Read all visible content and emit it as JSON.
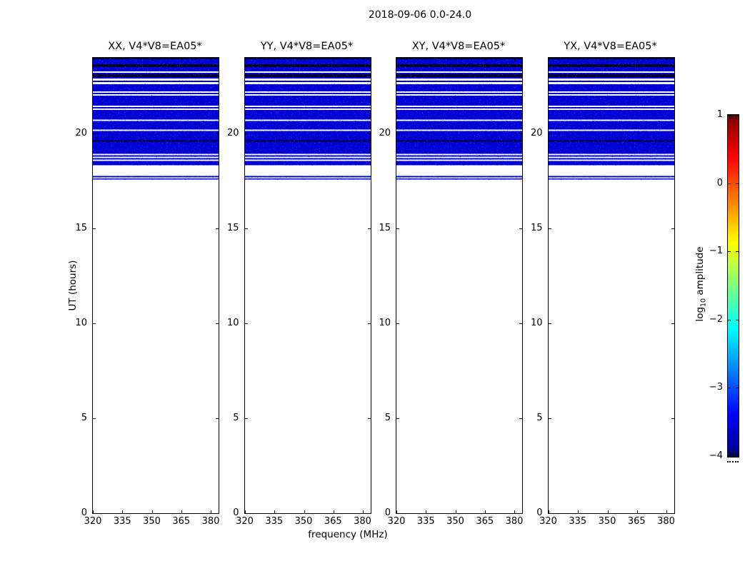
{
  "figure": {
    "suptitle": "2018-09-06 0.0-24.0",
    "background_color": "#ffffff"
  },
  "chart_data": {
    "type": "heatmap",
    "title": "2018-09-06 0.0-24.0",
    "panels": [
      {
        "title": "XX, V4*V8=EA05*"
      },
      {
        "title": "YY, V4*V8=EA05*"
      },
      {
        "title": "XY, V4*V8=EA05*"
      },
      {
        "title": "YX, V4*V8=EA05*"
      }
    ],
    "xlabel": "frequency (MHz)",
    "ylabel": "UT (hours)",
    "x_ticks": [
      "320",
      "335",
      "350",
      "365",
      "380"
    ],
    "x_tick_values": [
      320,
      335,
      350,
      365,
      380
    ],
    "x_range_mhz": [
      320,
      384
    ],
    "y_ticks": [
      "0",
      "5",
      "10",
      "15",
      "20"
    ],
    "y_tick_values": [
      0,
      5,
      10,
      15,
      20
    ],
    "y_range_hours": [
      0,
      24
    ],
    "colormap": "jet",
    "colorbar": {
      "label": "log10 amplitude",
      "label_prefix": "log",
      "label_sub": "10",
      "label_suffix": " amplitude",
      "tick_labels": [
        "1",
        "0",
        "−1",
        "−2",
        "−3",
        "−4"
      ],
      "tick_values": [
        1,
        0,
        -1,
        -2,
        -3,
        -4
      ],
      "range": [
        -4,
        1
      ],
      "gradient_stops": [
        {
          "pos": 0.0,
          "color": "#800000"
        },
        {
          "pos": 0.125,
          "color": "#ff0000"
        },
        {
          "pos": 0.375,
          "color": "#ffff00"
        },
        {
          "pos": 0.625,
          "color": "#00ffff"
        },
        {
          "pos": 0.875,
          "color": "#0000ff"
        },
        {
          "pos": 1.0,
          "color": "#000080"
        }
      ]
    },
    "data_region": {
      "observed_hours": [
        17.59,
        24.0
      ],
      "no_data_hours": [
        0,
        17.59
      ],
      "noise_color": "#0000d6",
      "dark_band_color": "#000321",
      "gap_color": "#ffffff",
      "note": "Blue speckled amplitude data (~log10 amp -3.5) fills 17.6-24 UT in all four panels; white rows are flagged gaps, near-black rows are low-amplitude bands; identical pattern in every panel.",
      "bands": [
        {
          "from": 24.0,
          "to": 23.925,
          "kind": "dark"
        },
        {
          "from": 23.925,
          "to": 23.663,
          "kind": "noise"
        },
        {
          "from": 23.663,
          "to": 23.513,
          "kind": "dark"
        },
        {
          "from": 23.513,
          "to": 23.288,
          "kind": "noise"
        },
        {
          "from": 23.213,
          "to": 23.138,
          "kind": "noise"
        },
        {
          "from": 23.138,
          "to": 22.988,
          "kind": "dark"
        },
        {
          "from": 22.988,
          "to": 22.913,
          "kind": "noise"
        },
        {
          "from": 22.8,
          "to": 22.725,
          "kind": "noise"
        },
        {
          "from": 22.613,
          "to": 22.238,
          "kind": "noise"
        },
        {
          "from": 22.163,
          "to": 22.088,
          "kind": "noise"
        },
        {
          "from": 22.013,
          "to": 21.488,
          "kind": "noise"
        },
        {
          "from": 21.413,
          "to": 21.338,
          "kind": "noise"
        },
        {
          "from": 21.263,
          "to": 20.738,
          "kind": "noise"
        },
        {
          "from": 20.663,
          "to": 20.213,
          "kind": "noise"
        },
        {
          "from": 20.138,
          "to": 19.65,
          "kind": "noise"
        },
        {
          "from": 19.65,
          "to": 19.575,
          "kind": "dark"
        },
        {
          "from": 19.575,
          "to": 18.938,
          "kind": "noise"
        },
        {
          "from": 18.863,
          "to": 18.788,
          "kind": "noise"
        },
        {
          "from": 18.713,
          "to": 18.638,
          "kind": "noise"
        },
        {
          "from": 18.563,
          "to": 18.338,
          "kind": "noise"
        },
        {
          "from": 17.775,
          "to": 17.7,
          "kind": "noise"
        },
        {
          "from": 17.644,
          "to": 17.588,
          "kind": "noise"
        }
      ]
    }
  }
}
